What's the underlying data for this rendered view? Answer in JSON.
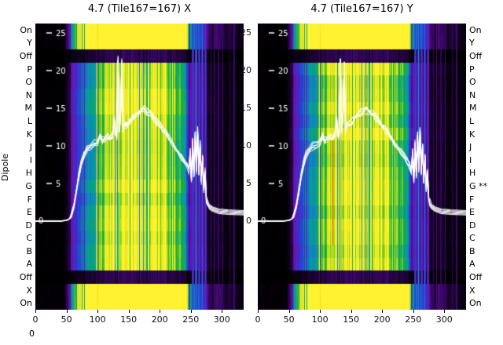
{
  "chart_data": {
    "type": "heatmap",
    "description": "Two antenna-tile spectrogram panels (X and Y polarisation) of per-dipole spectra with overlaid white bandpass curves",
    "panels": [
      {
        "title": "4.7 (Tile167=167) X"
      },
      {
        "title": "4.7 (Tile167=167) Y"
      }
    ],
    "row_labels": [
      "On",
      "Y",
      "Off",
      "P",
      "O",
      "N",
      "M",
      "L",
      "K",
      "J",
      "I",
      "H",
      "G",
      "F",
      "E",
      "D",
      "C",
      "B",
      "A",
      "Off",
      "X",
      "On"
    ],
    "right_row_labels": [
      "On",
      "Y",
      "Off",
      "P",
      "O",
      "N",
      "M",
      "L",
      "K",
      "J",
      "I",
      "H",
      "G **",
      "F",
      "E",
      "D",
      "C",
      "B",
      "A",
      "Off",
      "X",
      "On"
    ],
    "y_axis_label": "Dipole",
    "x_ticks": [
      0,
      50,
      100,
      150,
      200,
      250,
      300
    ],
    "value_ticks": [
      25,
      20,
      15,
      10,
      5,
      0
    ],
    "x_range": [
      0,
      335
    ],
    "value_range": [
      0,
      25
    ],
    "corner_label": "0",
    "line_color": "#ffffff",
    "background_color": "#000000",
    "spectrum_envelope": {
      "x": [
        0,
        45,
        52,
        58,
        64,
        72,
        80,
        90,
        100,
        115,
        130,
        150,
        175,
        195,
        210,
        225,
        235,
        242,
        248,
        253,
        258,
        264,
        270,
        274,
        280,
        288,
        295,
        305,
        315,
        325,
        335
      ],
      "v": [
        0.01,
        0.01,
        0.12,
        0.3,
        0.45,
        0.55,
        0.62,
        0.68,
        0.78,
        0.9,
        0.96,
        1.0,
        1.0,
        0.95,
        0.88,
        0.8,
        0.72,
        0.6,
        0.4,
        0.28,
        0.24,
        0.28,
        0.26,
        0.14,
        0.08,
        0.12,
        0.1,
        0.06,
        0.08,
        0.04,
        0.03
      ]
    },
    "line_profile": {
      "x": [
        0,
        40,
        50,
        55,
        58,
        62,
        66,
        70,
        74,
        78,
        83,
        88,
        95,
        100,
        104,
        108,
        112,
        116,
        120,
        124,
        127,
        129,
        131,
        133,
        135,
        137,
        139,
        141,
        144,
        148,
        152,
        156,
        160,
        165,
        170,
        175,
        180,
        185,
        190,
        195,
        200,
        205,
        210,
        215,
        220,
        225,
        230,
        235,
        240,
        244,
        247,
        249,
        251,
        253,
        255,
        257,
        259,
        261,
        263,
        265,
        267,
        269,
        271,
        273,
        275,
        277,
        280,
        285,
        295,
        310,
        335
      ],
      "v": [
        0,
        0,
        0.1,
        0.3,
        0.8,
        2,
        4,
        6.2,
        7.8,
        8.8,
        9.5,
        9.9,
        10.2,
        10.4,
        11.3,
        10.7,
        11.0,
        11.3,
        11.0,
        11.4,
        13.5,
        11.6,
        11.3,
        21.5,
        12.0,
        13.8,
        21.0,
        12.4,
        12.8,
        13.0,
        13.3,
        13.6,
        14.0,
        14.4,
        14.7,
        14.8,
        14.5,
        14.2,
        13.8,
        13.3,
        12.8,
        12.2,
        11.6,
        11.0,
        10.4,
        9.8,
        9.2,
        8.6,
        8.0,
        7.4,
        6.8,
        9.2,
        5.4,
        10.6,
        6.0,
        11.6,
        6.8,
        12.2,
        6.4,
        10.2,
        5.2,
        8.6,
        4.2,
        6.6,
        3.0,
        2.4,
        1.9,
        1.6,
        1.3,
        1.2,
        1.1
      ]
    },
    "rfi": {
      "blue_lines": [
        {
          "x": 253,
          "v": 0.5
        },
        {
          "x": 258,
          "v": 0.62
        },
        {
          "x": 263,
          "v": 0.48
        },
        {
          "x": 268,
          "v": 0.55
        },
        {
          "x": 273,
          "v": 0.45
        }
      ],
      "purple_lines": [
        {
          "x": 282,
          "v": 0.2
        },
        {
          "x": 287,
          "v": 0.24
        },
        {
          "x": 294,
          "v": 0.18
        },
        {
          "x": 301,
          "v": 0.22
        },
        {
          "x": 312,
          "v": 0.17
        },
        {
          "x": 319,
          "v": 0.2
        }
      ]
    },
    "artifacts": [
      {
        "panel": 0,
        "x": 134,
        "rows": [
          13,
          18
        ],
        "color": "#2ee04c"
      },
      {
        "panel": 1,
        "x": 121,
        "rows": [
          9,
          16
        ],
        "color": "#ff9100"
      }
    ],
    "row_factors": {
      "on_rows": 1.9,
      "off_rows": 0.18,
      "dipole_base": 0.93,
      "dipole_jitter": 0.12
    },
    "colormap": [
      [
        0.0,
        0,
        0,
        0
      ],
      [
        0.08,
        12,
        2,
        22
      ],
      [
        0.18,
        48,
        6,
        88
      ],
      [
        0.3,
        108,
        16,
        170
      ],
      [
        0.4,
        72,
        40,
        200
      ],
      [
        0.5,
        32,
        72,
        212
      ],
      [
        0.58,
        24,
        122,
        202
      ],
      [
        0.66,
        0,
        162,
        152
      ],
      [
        0.74,
        24,
        172,
        62
      ],
      [
        0.82,
        96,
        202,
        32
      ],
      [
        0.9,
        212,
        226,
        24
      ],
      [
        1.0,
        255,
        242,
        48
      ]
    ]
  }
}
